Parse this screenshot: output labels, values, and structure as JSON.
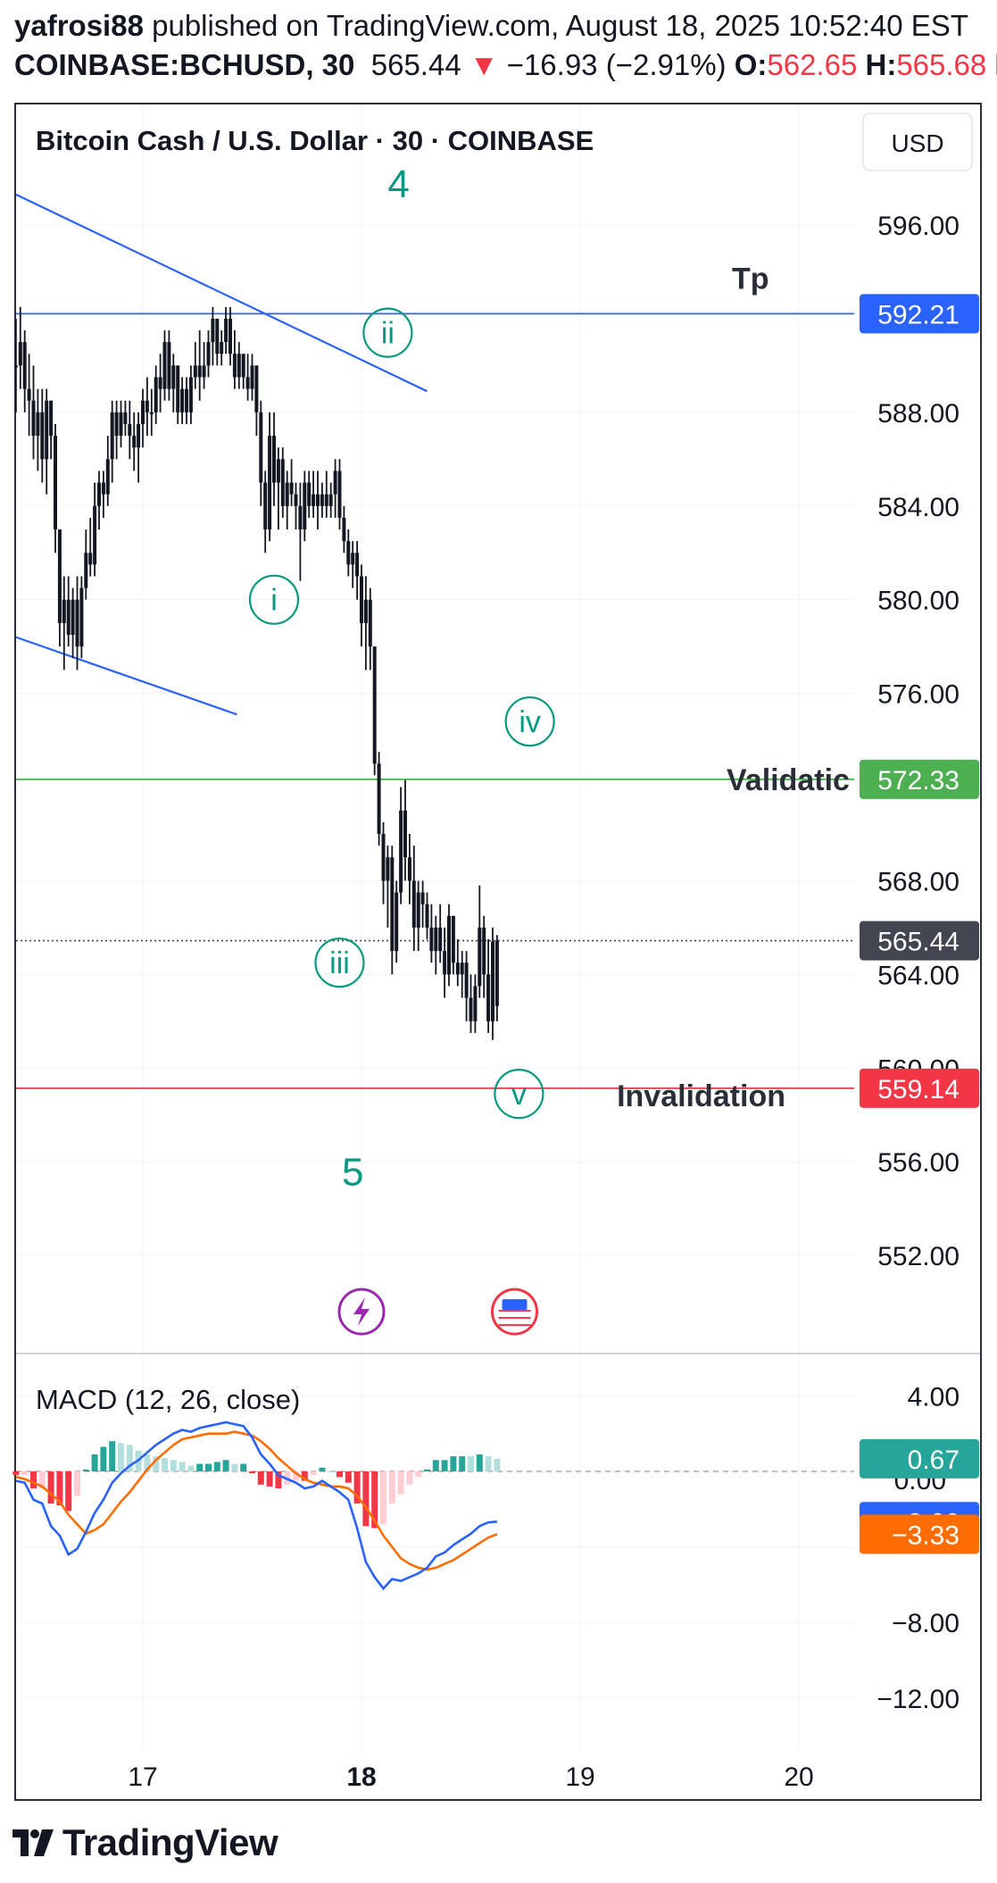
{
  "header": {
    "author": "yafrosi88",
    "published_text": "published on TradingView.com, August 18, 2025 10:52:40 EST",
    "symbol": "COINBASE:BCHUSD, 30",
    "last": "565.44",
    "change_arrow": "▼",
    "change": "−16.93 (−2.91%)",
    "o_label": "O:",
    "o_value": "562.65",
    "h_label": "H:",
    "h_value": "565.68",
    "trailing": "L"
  },
  "legend": {
    "title": "Bitcoin Cash / U.S. Dollar · 30 · COINBASE",
    "currency_button": "USD"
  },
  "chart_data": [
    {
      "type": "candlestick",
      "title": "Bitcoin Cash / U.S. Dollar · 30 · COINBASE",
      "currency": "USD",
      "ylim": [
        548.5,
        600.5
      ],
      "y_ticks": [
        596,
        588,
        584,
        580,
        576,
        568,
        564,
        560,
        556,
        552
      ],
      "y_tick_labels": [
        "596.00",
        "588.00",
        "584.00",
        "580.00",
        "576.00",
        "568.00",
        "564.00",
        "560.00",
        "556.00",
        "552.00"
      ],
      "x_ticks": [
        "17",
        "18",
        "19",
        "20"
      ],
      "x_tick_values": [
        17,
        18,
        19,
        20
      ],
      "xlim": [
        16.42,
        20.2
      ],
      "grid": true,
      "bars": [
        [
          16.42,
          590,
          592,
          588,
          590
        ],
        [
          16.44,
          590,
          592.5,
          589,
          591
        ],
        [
          16.46,
          591,
          591.5,
          588,
          589
        ],
        [
          16.48,
          589,
          590.5,
          587,
          588.5
        ],
        [
          16.5,
          588.5,
          590,
          586,
          587
        ],
        [
          16.52,
          587,
          589,
          585.5,
          588
        ],
        [
          16.54,
          588,
          589,
          585,
          586
        ],
        [
          16.56,
          586,
          589,
          584.5,
          588.5
        ],
        [
          16.58,
          588.5,
          588.5,
          586,
          587
        ],
        [
          16.6,
          587,
          587.5,
          582,
          583
        ],
        [
          16.62,
          583,
          583,
          578,
          579
        ],
        [
          16.64,
          579,
          581,
          577,
          580
        ],
        [
          16.66,
          580,
          581,
          578,
          578.5
        ],
        [
          16.68,
          578.5,
          580.5,
          577.5,
          580
        ],
        [
          16.7,
          580,
          581,
          577,
          578
        ],
        [
          16.72,
          578,
          581,
          577.5,
          580.5
        ],
        [
          16.74,
          580.5,
          583,
          580,
          582
        ],
        [
          16.76,
          582,
          583.5,
          581,
          581.5
        ],
        [
          16.78,
          581.5,
          585,
          581,
          584
        ],
        [
          16.8,
          584,
          585.5,
          583,
          585
        ],
        [
          16.82,
          585,
          585.5,
          583.5,
          584.5
        ],
        [
          16.84,
          584.5,
          587,
          584,
          586
        ],
        [
          16.86,
          586,
          588.5,
          585,
          588
        ],
        [
          16.88,
          588,
          588.5,
          586,
          587
        ],
        [
          16.9,
          587,
          588.5,
          586.5,
          588
        ],
        [
          16.92,
          588,
          588.5,
          587,
          587.5
        ],
        [
          16.94,
          587.5,
          588.5,
          586,
          587
        ],
        [
          16.96,
          587,
          588,
          585.5,
          586.5
        ],
        [
          16.98,
          586.5,
          588,
          585,
          587.5
        ],
        [
          17.0,
          587.5,
          589,
          586.5,
          588.5
        ],
        [
          17.02,
          588.5,
          589.5,
          587,
          588
        ],
        [
          17.04,
          588,
          589,
          587,
          588
        ],
        [
          17.06,
          588,
          590,
          587.5,
          589.5
        ],
        [
          17.08,
          589.5,
          590.5,
          588,
          589
        ],
        [
          17.1,
          589,
          591.5,
          588.5,
          591
        ],
        [
          17.12,
          591,
          591.5,
          588.5,
          589
        ],
        [
          17.14,
          589,
          590.5,
          588,
          590
        ],
        [
          17.16,
          590,
          590,
          587.5,
          588
        ],
        [
          17.18,
          588,
          589.5,
          587.5,
          589
        ],
        [
          17.2,
          589,
          589.5,
          587.5,
          588
        ],
        [
          17.22,
          588,
          590,
          587.5,
          589.5
        ],
        [
          17.24,
          589.5,
          591,
          589,
          590
        ],
        [
          17.26,
          590,
          591.5,
          588.5,
          589.5
        ],
        [
          17.28,
          589.5,
          591,
          589,
          590
        ],
        [
          17.3,
          590,
          591.5,
          589.5,
          591
        ],
        [
          17.32,
          591,
          592.5,
          590,
          592
        ],
        [
          17.34,
          592,
          592,
          590,
          590.5
        ],
        [
          17.36,
          590.5,
          591.5,
          590,
          591
        ],
        [
          17.38,
          591,
          592.5,
          590.5,
          592
        ],
        [
          17.4,
          592,
          592.5,
          590,
          590.5
        ],
        [
          17.42,
          590.5,
          591.5,
          589,
          589.5
        ],
        [
          17.44,
          589.5,
          591,
          589,
          590.5
        ],
        [
          17.46,
          590.5,
          590.5,
          589,
          589.5
        ],
        [
          17.48,
          589.5,
          590.5,
          588.5,
          589
        ],
        [
          17.5,
          589,
          590.5,
          588.5,
          590
        ],
        [
          17.52,
          590,
          590,
          587,
          588
        ],
        [
          17.54,
          588,
          588.5,
          584,
          585
        ],
        [
          17.56,
          585,
          585.5,
          582,
          583
        ],
        [
          17.58,
          583,
          588,
          582.5,
          587
        ],
        [
          17.6,
          587,
          588,
          584,
          585
        ],
        [
          17.62,
          585,
          586.5,
          583,
          586
        ],
        [
          17.64,
          586,
          586.5,
          583.5,
          584
        ],
        [
          17.66,
          584,
          585.5,
          583,
          585
        ],
        [
          17.68,
          585,
          586,
          584,
          584.5
        ],
        [
          17.7,
          584.5,
          585,
          583,
          584
        ],
        [
          17.72,
          584,
          585,
          580.8,
          583
        ],
        [
          17.74,
          583,
          585.5,
          582.5,
          585
        ],
        [
          17.76,
          585,
          585.5,
          583.5,
          584
        ],
        [
          17.78,
          584,
          585.5,
          583.5,
          584.5
        ],
        [
          17.8,
          584.5,
          585.5,
          583,
          584
        ],
        [
          17.82,
          584,
          585,
          583.5,
          584.5
        ],
        [
          17.84,
          584.5,
          585.5,
          583.5,
          584
        ],
        [
          17.86,
          584,
          585,
          583.5,
          584.5
        ],
        [
          17.88,
          584.5,
          586,
          583.5,
          585.5
        ],
        [
          17.9,
          585.5,
          586,
          583,
          583.5
        ],
        [
          17.92,
          583.5,
          584,
          582,
          582.5
        ],
        [
          17.94,
          582.5,
          583,
          581,
          581.5
        ],
        [
          17.96,
          581.5,
          582.5,
          580.5,
          582
        ],
        [
          17.98,
          582,
          582.5,
          580,
          581
        ],
        [
          18.0,
          581,
          581.5,
          578,
          579
        ],
        [
          18.02,
          579,
          581,
          577,
          580
        ],
        [
          18.04,
          580,
          580.5,
          577,
          578
        ],
        [
          18.06,
          578,
          578,
          572.5,
          573
        ],
        [
          18.08,
          573,
          573.5,
          569.5,
          570
        ],
        [
          18.1,
          570,
          570.5,
          567,
          568
        ],
        [
          18.12,
          568,
          569.5,
          566,
          569
        ],
        [
          18.14,
          569,
          569.5,
          564,
          565
        ],
        [
          18.16,
          565,
          568,
          564.5,
          567.5
        ],
        [
          18.18,
          567.5,
          572,
          567,
          571
        ],
        [
          18.2,
          571,
          572.3,
          568,
          569
        ],
        [
          18.22,
          569,
          570,
          567,
          568
        ],
        [
          18.24,
          568,
          569.5,
          565,
          566
        ],
        [
          18.26,
          566,
          568,
          565,
          567.5
        ],
        [
          18.28,
          567.5,
          568,
          566,
          567
        ],
        [
          18.3,
          567,
          567.5,
          565.5,
          566
        ],
        [
          18.32,
          566,
          567,
          564.5,
          565
        ],
        [
          18.34,
          565,
          566.5,
          564,
          566
        ],
        [
          18.36,
          566,
          567,
          564.5,
          565
        ],
        [
          18.38,
          565,
          566,
          563,
          564
        ],
        [
          18.4,
          564,
          567,
          563.5,
          566.5
        ],
        [
          18.42,
          566.5,
          566.5,
          564,
          564.5
        ],
        [
          18.44,
          564.5,
          565.5,
          563.5,
          564
        ],
        [
          18.46,
          564,
          565,
          563,
          564.5
        ],
        [
          18.48,
          564.5,
          565,
          562,
          563
        ],
        [
          18.5,
          563,
          564,
          561.5,
          562
        ],
        [
          18.52,
          562,
          564,
          561.5,
          563.5
        ],
        [
          18.54,
          563.5,
          567.8,
          563,
          566
        ],
        [
          18.56,
          566,
          566.5,
          563,
          564
        ],
        [
          18.58,
          564,
          565.5,
          561.5,
          562
        ],
        [
          18.6,
          562,
          566,
          561.2,
          565.4
        ],
        [
          18.62,
          562.65,
          565.68,
          562,
          565.44
        ]
      ],
      "horizontal_lines": [
        {
          "price": 592.21,
          "label": "Tp",
          "price_label": "592.21",
          "color": "#2962ff"
        },
        {
          "price": 572.33,
          "label": "Validatic",
          "price_label": "572.33",
          "color": "#4caf50"
        },
        {
          "price": 559.14,
          "label": "Invalidation",
          "price_label": "559.14",
          "color": "#f23645"
        },
        {
          "price": 565.44,
          "price_label": "565.44",
          "color": "#434651",
          "dotted": true
        }
      ],
      "trendlines": [
        {
          "from": [
            16.42,
            597.3
          ],
          "to": [
            18.3,
            588.9
          ],
          "color": "#2962ff"
        },
        {
          "from": [
            16.42,
            578.4
          ],
          "to": [
            17.43,
            575.1
          ],
          "color": "#2962ff"
        }
      ],
      "wave_labels": [
        {
          "text": "4",
          "at": [
            18.17,
            597.8
          ],
          "circled": false
        },
        {
          "text": "ii",
          "at": [
            18.12,
            591.4
          ],
          "circled": true
        },
        {
          "text": "i",
          "at": [
            17.6,
            580.0
          ],
          "circled": true
        },
        {
          "text": "iv",
          "at": [
            18.77,
            574.8
          ],
          "circled": true
        },
        {
          "text": "iii",
          "at": [
            17.9,
            564.5
          ],
          "circled": true
        },
        {
          "text": "v",
          "at": [
            18.72,
            558.9
          ],
          "circled": true
        },
        {
          "text": "5",
          "at": [
            17.96,
            555.6
          ],
          "circled": false
        }
      ],
      "event_icons": [
        {
          "name": "lightning-event-icon",
          "at": [
            18.0,
            549.6
          ],
          "color": "#9c27b0"
        },
        {
          "name": "us-flag-event-icon",
          "at": [
            18.7,
            549.6
          ],
          "color": "#f23645"
        }
      ]
    },
    {
      "type": "macd",
      "title": "MACD (12, 26, close)",
      "ylim": [
        -14.0,
        5.8
      ],
      "y_ticks": [
        4,
        -8,
        -12
      ],
      "y_tick_labels": [
        "4.00",
        "−8.00",
        "−12.00"
      ],
      "zero_label": "0.00",
      "x": [
        16.42,
        16.46,
        16.5,
        16.54,
        16.58,
        16.62,
        16.66,
        16.7,
        16.74,
        16.78,
        16.82,
        16.86,
        16.9,
        16.94,
        16.98,
        17.02,
        17.06,
        17.1,
        17.14,
        17.18,
        17.22,
        17.26,
        17.3,
        17.34,
        17.38,
        17.42,
        17.46,
        17.5,
        17.54,
        17.58,
        17.62,
        17.66,
        17.7,
        17.74,
        17.78,
        17.82,
        17.86,
        17.9,
        17.94,
        17.98,
        18.02,
        18.06,
        18.1,
        18.14,
        18.18,
        18.22,
        18.26,
        18.3,
        18.34,
        18.38,
        18.42,
        18.46,
        18.5,
        18.54,
        18.58,
        18.62
      ],
      "macd": [
        -0.5,
        -0.6,
        -1.5,
        -1.7,
        -2.9,
        -3.4,
        -4.4,
        -4.1,
        -3.2,
        -2.2,
        -1.5,
        -0.6,
        -0.1,
        0.3,
        0.6,
        1.0,
        1.4,
        1.7,
        2.0,
        2.2,
        2.1,
        2.3,
        2.4,
        2.5,
        2.6,
        2.5,
        2.4,
        1.8,
        0.9,
        0.4,
        -0.2,
        -0.4,
        -0.6,
        -0.9,
        -0.8,
        -0.5,
        -0.8,
        -1.1,
        -1.5,
        -3.0,
        -4.8,
        -5.6,
        -6.2,
        -5.7,
        -5.8,
        -5.6,
        -5.4,
        -5.1,
        -4.5,
        -4.3,
        -3.9,
        -3.6,
        -3.3,
        -2.9,
        -2.7,
        -2.66
      ],
      "signal": [
        -0.3,
        -0.4,
        -0.6,
        -0.8,
        -1.2,
        -1.6,
        -2.3,
        -2.8,
        -3.3,
        -3.1,
        -2.8,
        -2.2,
        -1.6,
        -1.1,
        -0.5,
        0.1,
        0.6,
        1.0,
        1.4,
        1.7,
        1.8,
        1.9,
        2.0,
        2.0,
        2.0,
        2.1,
        2.0,
        1.9,
        1.6,
        1.2,
        0.7,
        0.3,
        -0.1,
        -0.4,
        -0.6,
        -0.7,
        -0.8,
        -0.8,
        -0.9,
        -1.3,
        -1.9,
        -2.6,
        -3.4,
        -4.0,
        -4.6,
        -4.9,
        -5.1,
        -5.2,
        -5.1,
        -4.9,
        -4.7,
        -4.4,
        -4.1,
        -3.8,
        -3.5,
        -3.33
      ],
      "histogram_last": 0.67,
      "last_macd": "−2.66",
      "last_signal": "−3.33",
      "last_hist": "0.67",
      "x_ticks": [
        "17",
        "18",
        "19",
        "20"
      ],
      "bold_x_tick": "18"
    }
  ],
  "footer": {
    "brand": "TradingView"
  },
  "colors": {
    "up": "#26a69a",
    "down": "#f23645",
    "macd": "#2962ff",
    "signal": "#ff6d00",
    "hist_up": "#26a69a",
    "hist_up_light": "#b2dfdb",
    "hist_dn": "#f23645",
    "hist_dn_light": "#ffcdd2",
    "wave": "#089981",
    "grid": "#f0f3fa",
    "frame": "#2a2e39"
  }
}
